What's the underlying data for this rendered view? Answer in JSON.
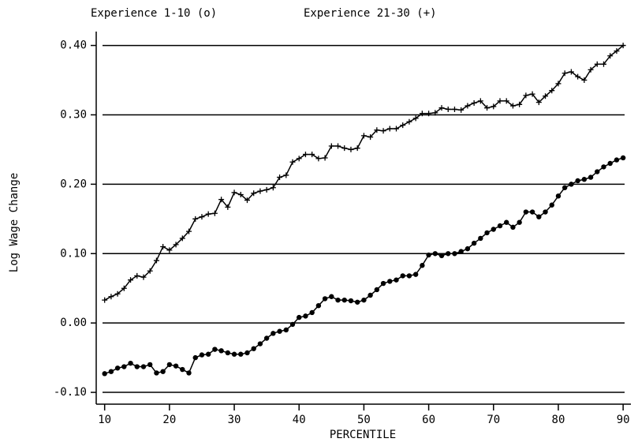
{
  "chart_data": {
    "type": "line",
    "xlabel": "PERCENTILE",
    "ylabel": "Log Wage Change",
    "x": [
      10,
      11,
      12,
      13,
      14,
      15,
      16,
      17,
      18,
      19,
      20,
      21,
      22,
      23,
      24,
      25,
      26,
      27,
      28,
      29,
      30,
      31,
      32,
      33,
      34,
      35,
      36,
      37,
      38,
      39,
      40,
      41,
      42,
      43,
      44,
      45,
      46,
      47,
      48,
      49,
      50,
      51,
      52,
      53,
      54,
      55,
      56,
      57,
      58,
      59,
      60,
      61,
      62,
      63,
      64,
      65,
      66,
      67,
      68,
      69,
      70,
      71,
      72,
      73,
      74,
      75,
      76,
      77,
      78,
      79,
      80,
      81,
      82,
      83,
      84,
      85,
      86,
      87,
      88,
      89,
      90
    ],
    "series": [
      {
        "name": "Experience 1-10 (o)",
        "color": "#000000",
        "marker": "circle",
        "values": [
          -0.073,
          -0.07,
          -0.065,
          -0.063,
          -0.058,
          -0.063,
          -0.063,
          -0.06,
          -0.072,
          -0.07,
          -0.06,
          -0.062,
          -0.067,
          -0.072,
          -0.05,
          -0.046,
          -0.045,
          -0.038,
          -0.04,
          -0.043,
          -0.045,
          -0.045,
          -0.043,
          -0.037,
          -0.03,
          -0.022,
          -0.015,
          -0.012,
          -0.01,
          -0.002,
          0.008,
          0.01,
          0.015,
          0.025,
          0.035,
          0.038,
          0.033,
          0.033,
          0.032,
          0.03,
          0.033,
          0.04,
          0.048,
          0.057,
          0.06,
          0.062,
          0.068,
          0.068,
          0.07,
          0.083,
          0.098,
          0.1,
          0.097,
          0.1,
          0.1,
          0.103,
          0.107,
          0.115,
          0.122,
          0.13,
          0.135,
          0.14,
          0.145,
          0.138,
          0.145,
          0.16,
          0.16,
          0.153,
          0.16,
          0.17,
          0.183,
          0.195,
          0.2,
          0.205,
          0.207,
          0.21,
          0.218,
          0.225,
          0.23,
          0.235,
          0.238
        ]
      },
      {
        "name": "Experience 21-30 (+)",
        "color": "#000000",
        "marker": "plus",
        "values": [
          0.033,
          0.038,
          0.042,
          0.05,
          0.062,
          0.068,
          0.066,
          0.075,
          0.09,
          0.11,
          0.105,
          0.113,
          0.122,
          0.132,
          0.15,
          0.153,
          0.157,
          0.158,
          0.178,
          0.167,
          0.188,
          0.185,
          0.177,
          0.187,
          0.19,
          0.192,
          0.195,
          0.21,
          0.213,
          0.232,
          0.237,
          0.243,
          0.243,
          0.237,
          0.238,
          0.255,
          0.255,
          0.252,
          0.25,
          0.252,
          0.27,
          0.268,
          0.278,
          0.277,
          0.28,
          0.28,
          0.285,
          0.29,
          0.295,
          0.302,
          0.302,
          0.303,
          0.31,
          0.308,
          0.308,
          0.307,
          0.313,
          0.317,
          0.32,
          0.31,
          0.312,
          0.32,
          0.32,
          0.313,
          0.315,
          0.328,
          0.33,
          0.318,
          0.327,
          0.335,
          0.345,
          0.36,
          0.362,
          0.355,
          0.35,
          0.365,
          0.373,
          0.373,
          0.385,
          0.392,
          0.4
        ]
      }
    ],
    "xlim": [
      8.7,
      91.2
    ],
    "xticks": [
      10,
      20,
      30,
      40,
      50,
      60,
      70,
      80,
      90
    ],
    "ylim": [
      -0.117,
      0.42
    ],
    "yticks": [
      {
        "value": -0.1,
        "label": "-0.10"
      },
      {
        "value": 0,
        "label": "0.00"
      },
      {
        "value": 0.1,
        "label": "0.10"
      },
      {
        "value": 0.2,
        "label": "0.20"
      },
      {
        "value": 0.3,
        "label": "0.30"
      },
      {
        "value": 0.4,
        "label": "0.40"
      }
    ],
    "grid": true
  }
}
